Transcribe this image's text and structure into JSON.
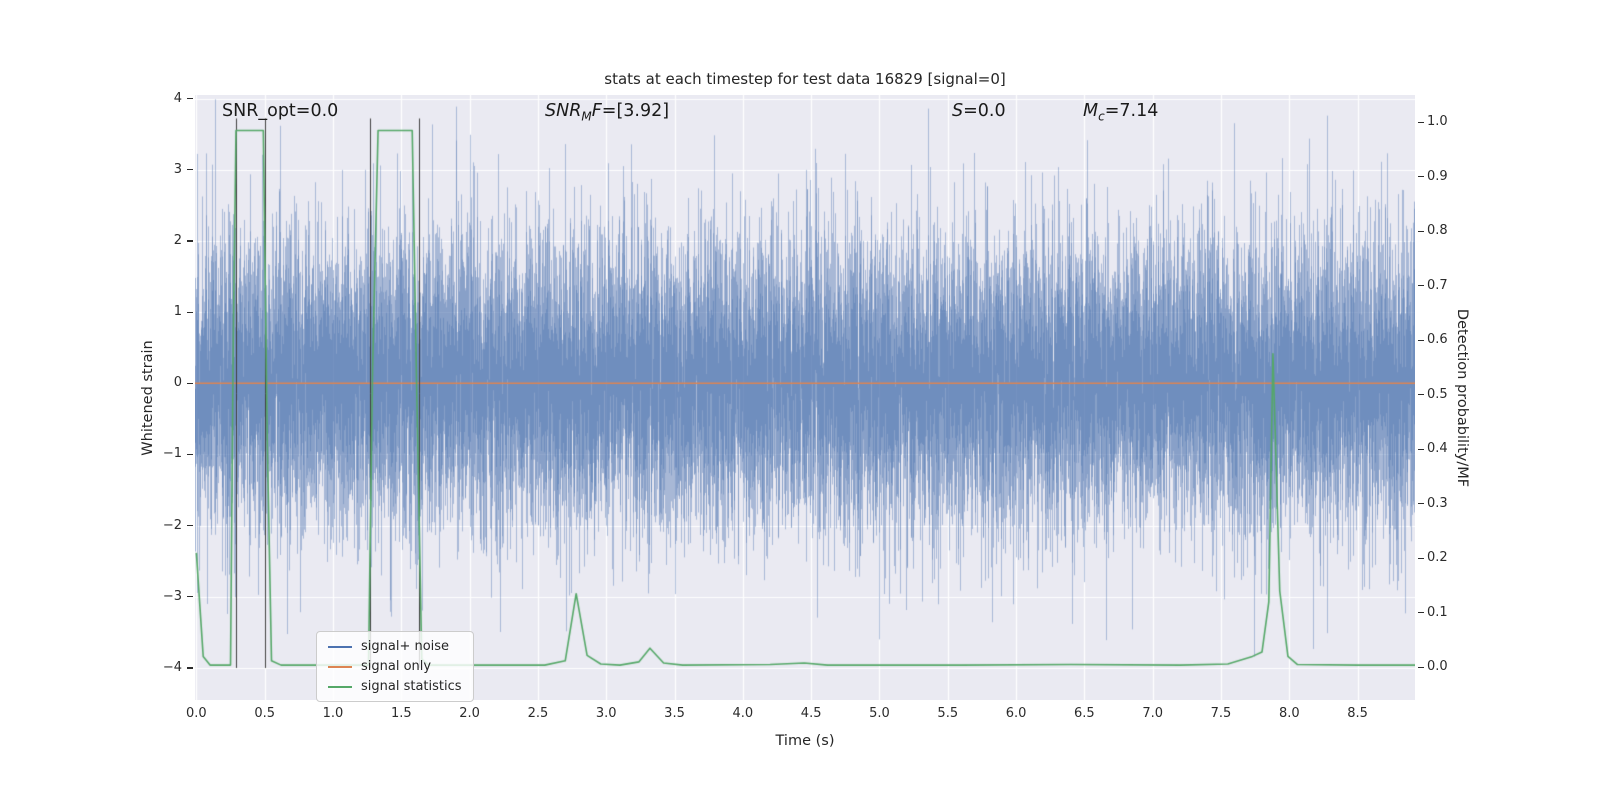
{
  "chart_data": {
    "type": "line",
    "title": "stats at each timestep for test data 16829 [signal=0]",
    "xlabel": "Time (s)",
    "ylabel_left": "Whitened strain",
    "ylabel_right": "Detection probability/MF",
    "xlim": [
      -0.01,
      8.92
    ],
    "ylim_left": [
      -4.45,
      4.05
    ],
    "ylim_right": [
      -0.06,
      1.05
    ],
    "xticks": [
      0.0,
      0.5,
      1.0,
      1.5,
      2.0,
      2.5,
      3.0,
      3.5,
      4.0,
      4.5,
      5.0,
      5.5,
      6.0,
      6.5,
      7.0,
      7.5,
      8.0,
      8.5
    ],
    "yticks_left": [
      -4,
      -3,
      -2,
      -1,
      0,
      1,
      2,
      3,
      4
    ],
    "yticks_right": [
      0.0,
      0.1,
      0.2,
      0.3,
      0.4,
      0.5,
      0.6,
      0.7,
      0.8,
      0.9,
      1.0
    ],
    "grid": true,
    "plot_background": "#eaeaf2",
    "grid_color": "#ffffff",
    "annotations": {
      "snr_opt": {
        "text": "SNR_opt=0.0"
      },
      "snr_mf": {
        "prefix": "SNR",
        "sub": "M",
        "mid": "F",
        "suffix": "=[3.92]"
      },
      "s": {
        "main": "S",
        "suffix": "=0.0"
      },
      "mc": {
        "main": "M",
        "sub": "c",
        "suffix": "=7.14"
      }
    },
    "series": [
      {
        "name": "signal+ noise",
        "type": "noise",
        "color": "#4C72B0",
        "axis": "left",
        "seed": 16829,
        "std": 1.04,
        "samples_per_pixel": 15,
        "clip": 4.2
      },
      {
        "name": "signal only",
        "type": "line",
        "color": "#DD8452",
        "axis": "left",
        "linewidth": 1.4,
        "points": [
          [
            -0.01,
            0.0
          ],
          [
            8.92,
            0.0
          ]
        ]
      },
      {
        "name": "signal statistics",
        "type": "line",
        "color": "#55A868",
        "axis": "right",
        "linewidth": 1.6,
        "points": [
          [
            0.0,
            0.21
          ],
          [
            0.05,
            0.02
          ],
          [
            0.1,
            0.004
          ],
          [
            0.25,
            0.004
          ],
          [
            0.27,
            0.6
          ],
          [
            0.29,
            0.985
          ],
          [
            0.49,
            0.985
          ],
          [
            0.52,
            0.4
          ],
          [
            0.55,
            0.012
          ],
          [
            0.62,
            0.004
          ],
          [
            1.26,
            0.004
          ],
          [
            1.29,
            0.55
          ],
          [
            1.33,
            0.985
          ],
          [
            1.58,
            0.985
          ],
          [
            1.61,
            0.55
          ],
          [
            1.65,
            0.015
          ],
          [
            1.7,
            0.004
          ],
          [
            2.55,
            0.004
          ],
          [
            2.7,
            0.012
          ],
          [
            2.78,
            0.135
          ],
          [
            2.86,
            0.022
          ],
          [
            2.96,
            0.006
          ],
          [
            3.1,
            0.004
          ],
          [
            3.24,
            0.01
          ],
          [
            3.32,
            0.035
          ],
          [
            3.42,
            0.008
          ],
          [
            3.56,
            0.004
          ],
          [
            4.2,
            0.005
          ],
          [
            4.45,
            0.008
          ],
          [
            4.62,
            0.004
          ],
          [
            5.6,
            0.004
          ],
          [
            6.4,
            0.005
          ],
          [
            7.2,
            0.004
          ],
          [
            7.55,
            0.006
          ],
          [
            7.73,
            0.02
          ],
          [
            7.8,
            0.028
          ],
          [
            7.85,
            0.12
          ],
          [
            7.88,
            0.575
          ],
          [
            7.93,
            0.14
          ],
          [
            7.99,
            0.02
          ],
          [
            8.06,
            0.005
          ],
          [
            8.5,
            0.004
          ],
          [
            8.92,
            0.004
          ]
        ]
      }
    ],
    "vlines": {
      "x": [
        0.29,
        0.5,
        1.27,
        1.63
      ],
      "ymin": -4.0,
      "ymax": 3.72,
      "color": "#404040"
    },
    "legend": {
      "position": "lower left"
    }
  }
}
